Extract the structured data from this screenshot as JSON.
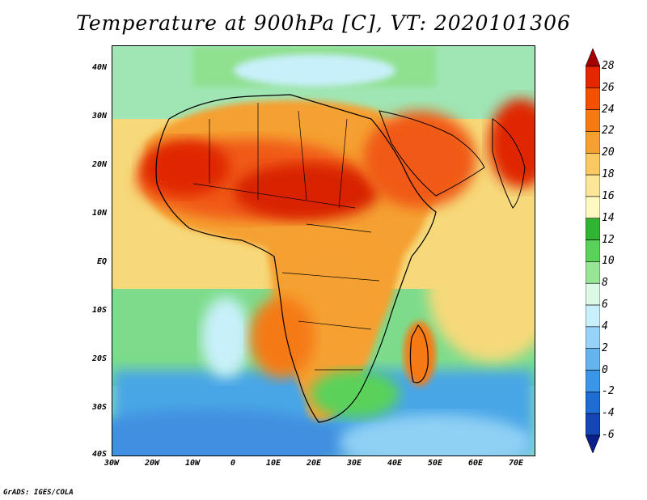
{
  "title": "Temperature at 900hPa [C], VT: 2020101306",
  "credit": "GrADS: IGES/COLA",
  "y_axis_labels": [
    "40N",
    "30N",
    "20N",
    "10N",
    "EQ",
    "10S",
    "20S",
    "30S",
    "40S"
  ],
  "x_axis_labels": [
    "30W",
    "20W",
    "10W",
    "0",
    "10E",
    "20E",
    "30E",
    "40E",
    "50E",
    "60E",
    "70E"
  ],
  "colorbar": {
    "labels": [
      "28",
      "26",
      "24",
      "22",
      "20",
      "18",
      "16",
      "14",
      "12",
      "10",
      "8",
      "6",
      "4",
      "2",
      "0",
      "-2",
      "-4",
      "-6"
    ],
    "colors": [
      "#a50000",
      "#e62600",
      "#f55000",
      "#f57a14",
      "#f5a032",
      "#fac864",
      "#fae696",
      "#fff8c0",
      "#32b432",
      "#5ad25a",
      "#96e696",
      "#dcf8e6",
      "#c8f0fa",
      "#96d2fa",
      "#64b4f0",
      "#3c96e6",
      "#1e6ed2",
      "#1446b4",
      "#0a1e8c"
    ]
  },
  "map": {
    "land_hot_color": "#e02800",
    "coast_color": "#000000"
  }
}
